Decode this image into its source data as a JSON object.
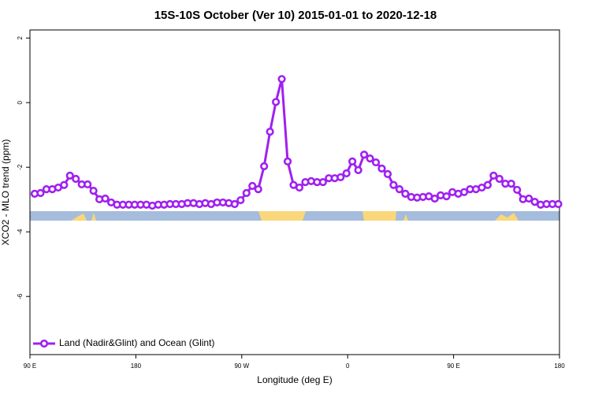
{
  "chart_data": {
    "type": "line",
    "title": "15S-10S October (Ver 10)   2015-01-01 to 2020-12-18",
    "x_label": "Longitude (deg E)",
    "y_label": "XCO2 - MLO trend (ppm)",
    "xlim": [
      90,
      540
    ],
    "ylim": [
      -7.8,
      2.25
    ],
    "xticks": [
      {
        "value": 90,
        "label": "90 E"
      },
      180,
      {
        "value": 270,
        "label": "90 W"
      },
      {
        "value": 360,
        "label": "0"
      },
      {
        "value": 450,
        "label": "90 E"
      },
      {
        "value": 540,
        "label": "180"
      }
    ],
    "yticks": [
      -6,
      -4,
      -2,
      0,
      2
    ],
    "legend": "bottom-left",
    "series": [
      {
        "name": "Land (Nadir&Glint) and Ocean (Glint)",
        "color": "#a020f0",
        "x": [
          94,
          99,
          104,
          109,
          114,
          119,
          124,
          129,
          134,
          139,
          144,
          149,
          154,
          159,
          164,
          169,
          174,
          179,
          184,
          189,
          194,
          199,
          204,
          209,
          214,
          219,
          224,
          229,
          234,
          239,
          244,
          249,
          254,
          259,
          264,
          269,
          274,
          279,
          284,
          289,
          294,
          299,
          304,
          309,
          314,
          319,
          324,
          329,
          334,
          339,
          344,
          349,
          354,
          359,
          364,
          369,
          374,
          379,
          384,
          389,
          394,
          399,
          404,
          409,
          414,
          419,
          424,
          429,
          434,
          439,
          444,
          449,
          454,
          459,
          464,
          469,
          474,
          479,
          484,
          489,
          494,
          499,
          504,
          509,
          514,
          519,
          524,
          529,
          534,
          539
        ],
        "values": [
          -2.82,
          -2.8,
          -2.68,
          -2.68,
          -2.63,
          -2.55,
          -2.26,
          -2.36,
          -2.53,
          -2.53,
          -2.73,
          -2.99,
          -2.97,
          -3.09,
          -3.16,
          -3.16,
          -3.16,
          -3.16,
          -3.16,
          -3.16,
          -3.19,
          -3.16,
          -3.16,
          -3.14,
          -3.14,
          -3.14,
          -3.11,
          -3.11,
          -3.14,
          -3.11,
          -3.14,
          -3.09,
          -3.09,
          -3.11,
          -3.14,
          -3.02,
          -2.8,
          -2.58,
          -2.68,
          -1.97,
          -0.9,
          0.02,
          0.73,
          -1.82,
          -2.55,
          -2.63,
          -2.46,
          -2.43,
          -2.46,
          -2.46,
          -2.34,
          -2.34,
          -2.31,
          -2.19,
          -1.82,
          -2.09,
          -1.61,
          -1.73,
          -1.85,
          -2.04,
          -2.21,
          -2.55,
          -2.68,
          -2.82,
          -2.92,
          -2.94,
          -2.92,
          -2.9,
          -2.97,
          -2.87,
          -2.9,
          -2.77,
          -2.82,
          -2.77,
          -2.68,
          -2.68,
          -2.63,
          -2.55,
          -2.26,
          -2.36,
          -2.51,
          -2.51,
          -2.7,
          -2.99,
          -2.97,
          -3.07,
          -3.16,
          -3.14,
          -3.14,
          -3.14
        ]
      }
    ]
  }
}
